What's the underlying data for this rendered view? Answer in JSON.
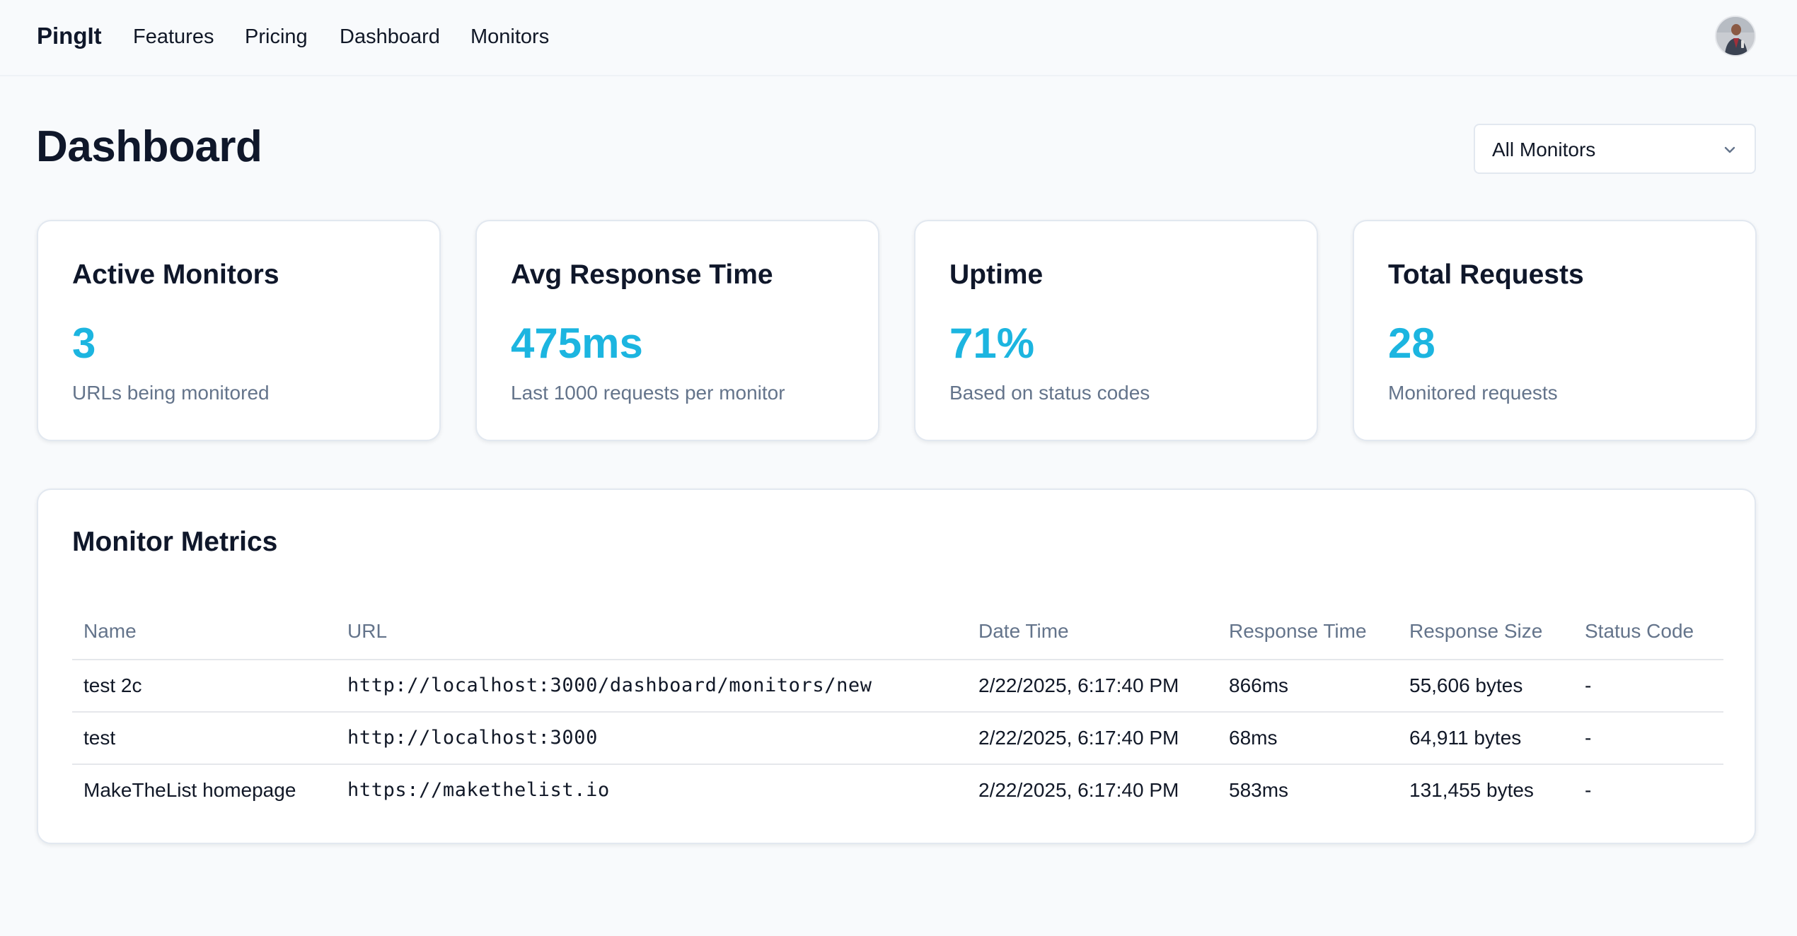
{
  "nav": {
    "brand": "PingIt",
    "links": [
      "Features",
      "Pricing",
      "Dashboard",
      "Monitors"
    ]
  },
  "header": {
    "title": "Dashboard",
    "filter": {
      "selected": "All Monitors",
      "icon": "chevron-down-icon"
    }
  },
  "stats": [
    {
      "title": "Active Monitors",
      "value": "3",
      "sub": "URLs being monitored"
    },
    {
      "title": "Avg Response Time",
      "value": "475ms",
      "sub": "Last 1000 requests per monitor"
    },
    {
      "title": "Uptime",
      "value": "71%",
      "sub": "Based on status codes"
    },
    {
      "title": "Total Requests",
      "value": "28",
      "sub": "Monitored requests"
    }
  ],
  "metrics": {
    "title": "Monitor Metrics",
    "columns": [
      "Name",
      "URL",
      "Date Time",
      "Response Time",
      "Response Size",
      "Status Code"
    ],
    "rows": [
      {
        "name": "test 2c",
        "url": "http://localhost:3000/dashboard/monitors/new",
        "datetime": "2/22/2025, 6:17:40 PM",
        "response_time": "866ms",
        "response_size": "55,606 bytes",
        "status": "-"
      },
      {
        "name": "test",
        "url": "http://localhost:3000",
        "datetime": "2/22/2025, 6:17:40 PM",
        "response_time": "68ms",
        "response_size": "64,911 bytes",
        "status": "-"
      },
      {
        "name": "MakeTheList homepage",
        "url": "https://makethelist.io",
        "datetime": "2/22/2025, 6:17:40 PM",
        "response_time": "583ms",
        "response_size": "131,455 bytes",
        "status": "-"
      }
    ]
  },
  "colors": {
    "accent": "#1cb5e0",
    "text": "#0f172a",
    "muted": "#64748b",
    "background": "#f8fafc"
  }
}
